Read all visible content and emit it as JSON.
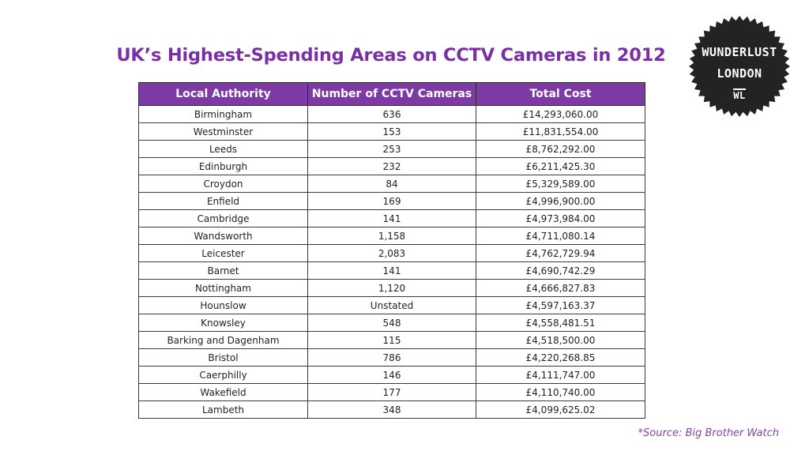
{
  "title": "UK’s Highest-Spending Areas on CCTV Cameras in 2012",
  "badge": {
    "line1": "WUNDERLUST",
    "line2": "LONDON",
    "line3": "WL"
  },
  "table": {
    "headers": [
      "Local Authority",
      "Number of CCTV Cameras",
      "Total Cost"
    ],
    "rows": [
      [
        "Birmingham",
        "636",
        "£14,293,060.00"
      ],
      [
        "Westminster",
        "153",
        "£11,831,554.00"
      ],
      [
        "Leeds",
        "253",
        "£8,762,292.00"
      ],
      [
        "Edinburgh",
        "232",
        "£6,211,425.30"
      ],
      [
        "Croydon",
        "84",
        "£5,329,589.00"
      ],
      [
        "Enfield",
        "169",
        "£4,996,900.00"
      ],
      [
        "Cambridge",
        "141",
        "£4,973,984.00"
      ],
      [
        "Wandsworth",
        "1,158",
        "£4,711,080.14"
      ],
      [
        "Leicester",
        "2,083",
        "£4,762,729.94"
      ],
      [
        "Barnet",
        "141",
        "£4,690,742.29"
      ],
      [
        "Nottingham",
        "1,120",
        "£4,666,827.83"
      ],
      [
        "Hounslow",
        "Unstated",
        "£4,597,163.37"
      ],
      [
        "Knowsley",
        "548",
        "£4,558,481.51"
      ],
      [
        "Barking and Dagenham",
        "115",
        "£4,518,500.00"
      ],
      [
        "Bristol",
        "786",
        "£4,220,268.85"
      ],
      [
        "Caerphilly",
        "146",
        "£4,111,747.00"
      ],
      [
        "Wakefield",
        "177",
        "£4,110,740.00"
      ],
      [
        "Lambeth",
        "348",
        "£4,099,625.02"
      ]
    ]
  },
  "source": "*Source: Big Brother Watch",
  "colors": {
    "accent": "#7d3aa4",
    "title": "#7b2fa6",
    "badge": "#232323"
  }
}
